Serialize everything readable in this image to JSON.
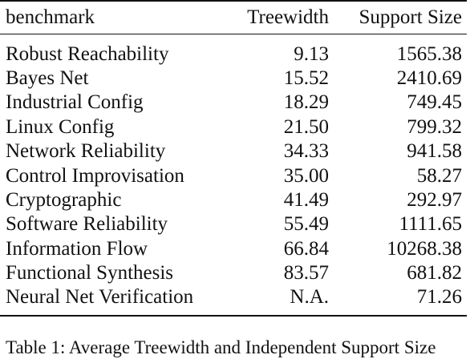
{
  "table": {
    "headers": {
      "benchmark": "benchmark",
      "treewidth": "Treewidth",
      "support_size": "Support Size"
    },
    "rows": [
      {
        "benchmark": "Robust Reachability",
        "treewidth": "9.13",
        "support_size": "1565.38"
      },
      {
        "benchmark": "Bayes Net",
        "treewidth": "15.52",
        "support_size": "2410.69"
      },
      {
        "benchmark": "Industrial Config",
        "treewidth": "18.29",
        "support_size": "749.45"
      },
      {
        "benchmark": "Linux Config",
        "treewidth": "21.50",
        "support_size": "799.32"
      },
      {
        "benchmark": "Network Reliability",
        "treewidth": "34.33",
        "support_size": "941.58"
      },
      {
        "benchmark": "Control Improvisation",
        "treewidth": "35.00",
        "support_size": "58.27"
      },
      {
        "benchmark": "Cryptographic",
        "treewidth": "41.49",
        "support_size": "292.97"
      },
      {
        "benchmark": "Software Reliability",
        "treewidth": "55.49",
        "support_size": "1111.65"
      },
      {
        "benchmark": "Information Flow",
        "treewidth": "66.84",
        "support_size": "10268.38"
      },
      {
        "benchmark": "Functional Synthesis",
        "treewidth": "83.57",
        "support_size": "681.82"
      },
      {
        "benchmark": "Neural Net Verification",
        "treewidth": "N.A.",
        "support_size": "71.26"
      }
    ],
    "caption": "Table 1: Average Treewidth and Independent Support Size"
  }
}
